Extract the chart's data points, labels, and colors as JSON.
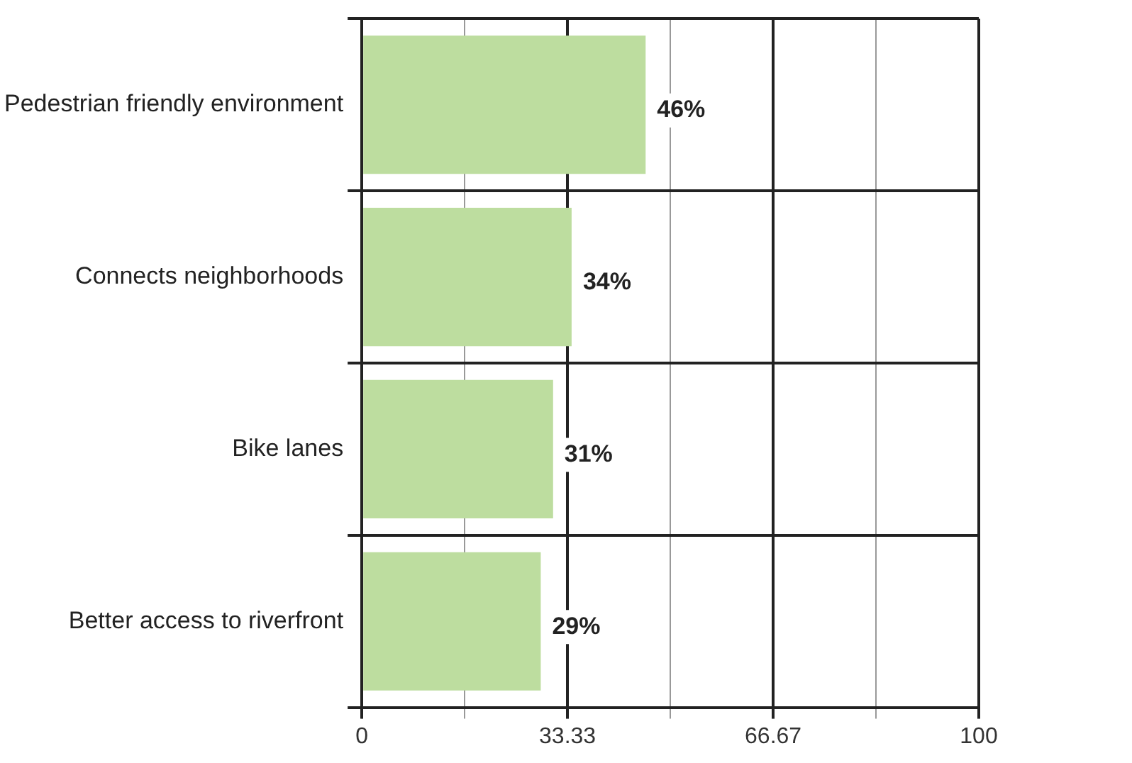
{
  "chart_data": {
    "type": "bar",
    "orientation": "horizontal",
    "categories": [
      "Pedestrian friendly environment",
      "Connects neighborhoods",
      "Bike lanes",
      "Better access to riverfront"
    ],
    "values": [
      46,
      34,
      31,
      29
    ],
    "color": "#bddd9f",
    "value_labels": [
      "46%",
      "34%",
      "31%",
      "29%"
    ],
    "xlim": [
      0,
      100
    ],
    "xticks": [
      0,
      {
        "value": 16.67,
        "label": null
      },
      33.33,
      {
        "value": 50,
        "label": null
      },
      66.67,
      {
        "value": 83.33,
        "label": null
      },
      100
    ],
    "grid": true
  }
}
